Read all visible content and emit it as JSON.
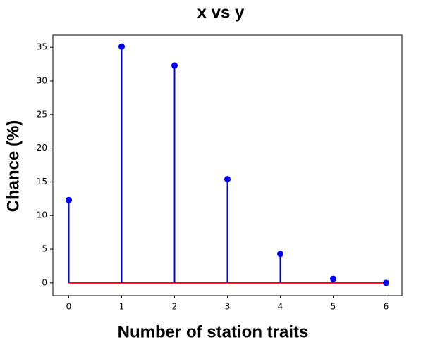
{
  "chart_data": {
    "type": "stem",
    "title": "x vs y",
    "x_label": "Number of station traits",
    "y_label": "Chance (%)",
    "x": [
      0,
      1,
      2,
      3,
      4,
      5,
      6
    ],
    "values": [
      12.3,
      35.1,
      32.3,
      15.4,
      4.3,
      0.6,
      0
    ],
    "color": "#0000ff",
    "baseline_color": "#ff0000",
    "xlim": [
      -0.3,
      6.3
    ],
    "ylim": [
      -1.9,
      36.8
    ],
    "xticks": [
      0,
      1,
      2,
      3,
      4,
      5,
      6
    ],
    "yticks": [
      0,
      5,
      10,
      15,
      20,
      25,
      30,
      35
    ]
  }
}
